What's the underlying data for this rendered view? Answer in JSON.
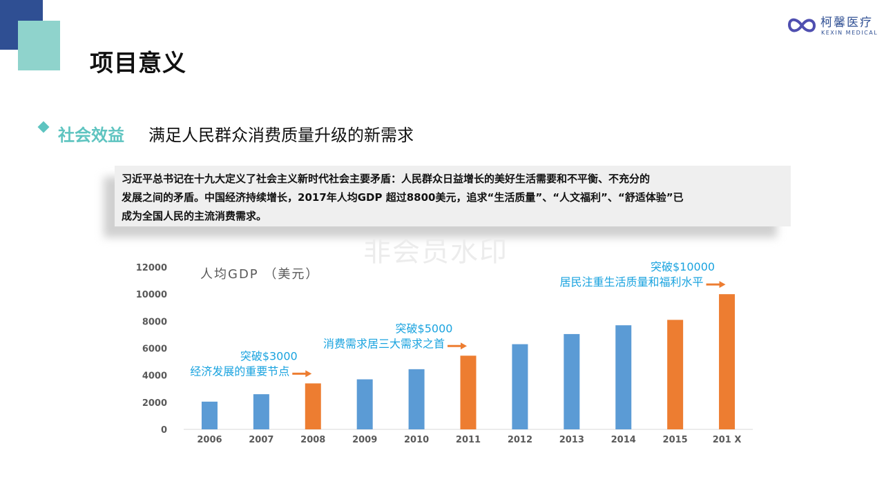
{
  "header": {
    "title": "项目意义",
    "logo": {
      "name_cn": "柯馨医疗",
      "name_en": "KEXIN MEDICAL",
      "icon": "heart-infinity-logo-icon"
    }
  },
  "section": {
    "label": "社会效益",
    "text": "满足人民群众消费质量升级的新需求",
    "bullet_icon": "diamond-bullet-icon"
  },
  "quote": {
    "lines": [
      "习近平总书记在十九大定义了社会主义新时代社会主要矛盾：人民群众日益增长的美好生活需要和不平衡、不充分的",
      "发展之间的矛盾。中国经济持续增长，2017年人均GDP 超过8800美元，追求“生活质量”、“人文福利”、“舒适体验”已",
      "成为全国人民的主流消费需求。"
    ]
  },
  "watermark": "非会员水印",
  "colors": {
    "navy": "#2f4f93",
    "teal": "#5ec4c0",
    "bar_blue": "#5b9bd5",
    "bar_orange": "#ed7d31",
    "annotation": "#1aa3df"
  },
  "chart_data": {
    "type": "bar",
    "title": "人均GDP （美元）",
    "categories": [
      "2006",
      "2007",
      "2008",
      "2009",
      "2010",
      "2011",
      "2012",
      "2013",
      "2014",
      "2015",
      "201 X"
    ],
    "values": [
      2050,
      2600,
      3400,
      3700,
      4450,
      5450,
      6300,
      7050,
      7700,
      8100,
      10000
    ],
    "highlight": [
      false,
      false,
      true,
      false,
      false,
      true,
      false,
      false,
      false,
      true,
      true
    ],
    "ylim": [
      0,
      12000
    ],
    "yticks": [
      0,
      2000,
      4000,
      6000,
      8000,
      10000,
      12000
    ],
    "grid": false,
    "annotations": [
      {
        "anchor_category": "2008",
        "lines": [
          "突破$3000",
          "经济发展的重要节点"
        ]
      },
      {
        "anchor_category": "2011",
        "lines": [
          "突破$5000",
          "消费需求居三大需求之首"
        ]
      },
      {
        "anchor_category": "201 X",
        "lines": [
          "突破$10000",
          "居民注重生活质量和福利水平"
        ]
      }
    ]
  }
}
